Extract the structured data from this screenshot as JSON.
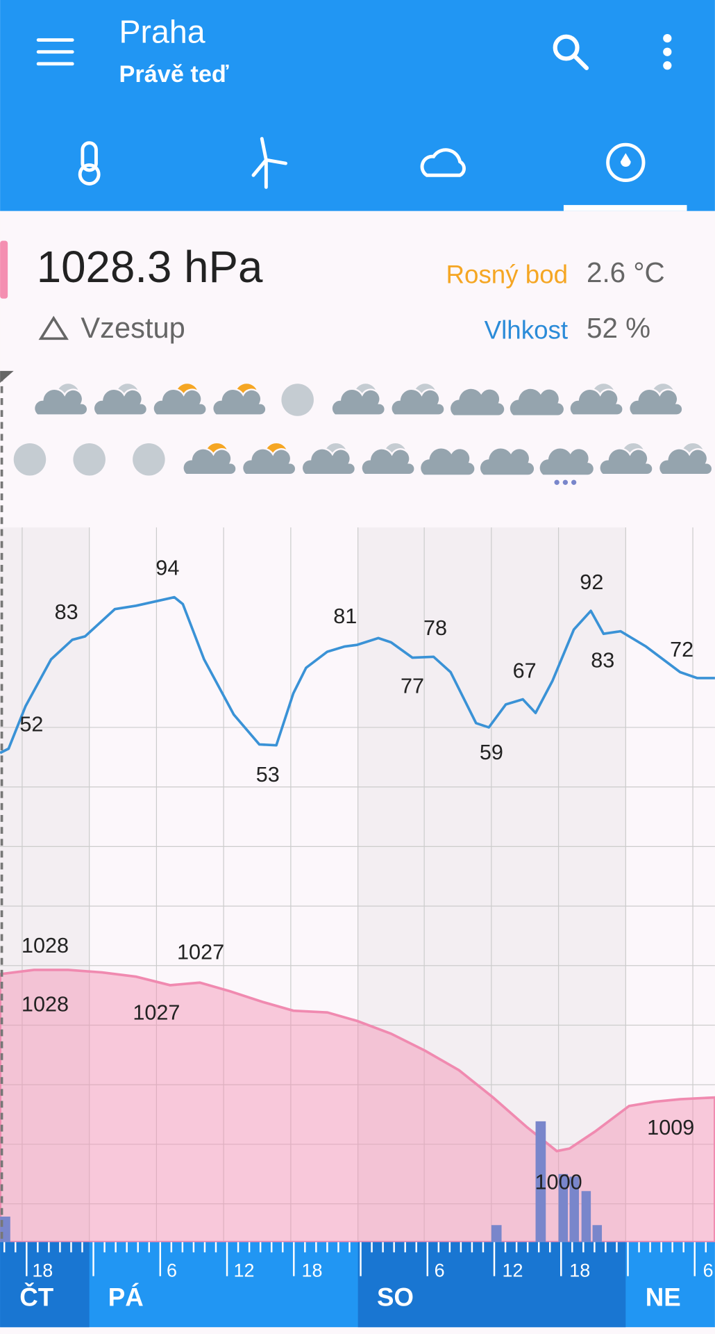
{
  "header": {
    "city": "Praha",
    "subtitle": "Právě teď"
  },
  "current": {
    "pressure": "1028.3 hPa",
    "trend": "Vzestup",
    "dew_point_label": "Rosný bod",
    "dew_point": "2.6 °C",
    "humidity_label": "Vlhkost",
    "humidity": "52 %"
  },
  "graph": {
    "humidity_labels": [
      "52",
      "83",
      "94",
      "53",
      "81",
      "77",
      "78",
      "59",
      "67",
      "92",
      "83",
      "72"
    ],
    "pressure_labels": [
      "1028",
      "1028",
      "1027",
      "1027",
      "1000",
      "1009"
    ],
    "time_ticks": [
      "18",
      "6",
      "12",
      "18",
      "6",
      "12",
      "18",
      "6"
    ],
    "days": [
      "ČT",
      "PÁ",
      "SO",
      "NE"
    ]
  }
}
